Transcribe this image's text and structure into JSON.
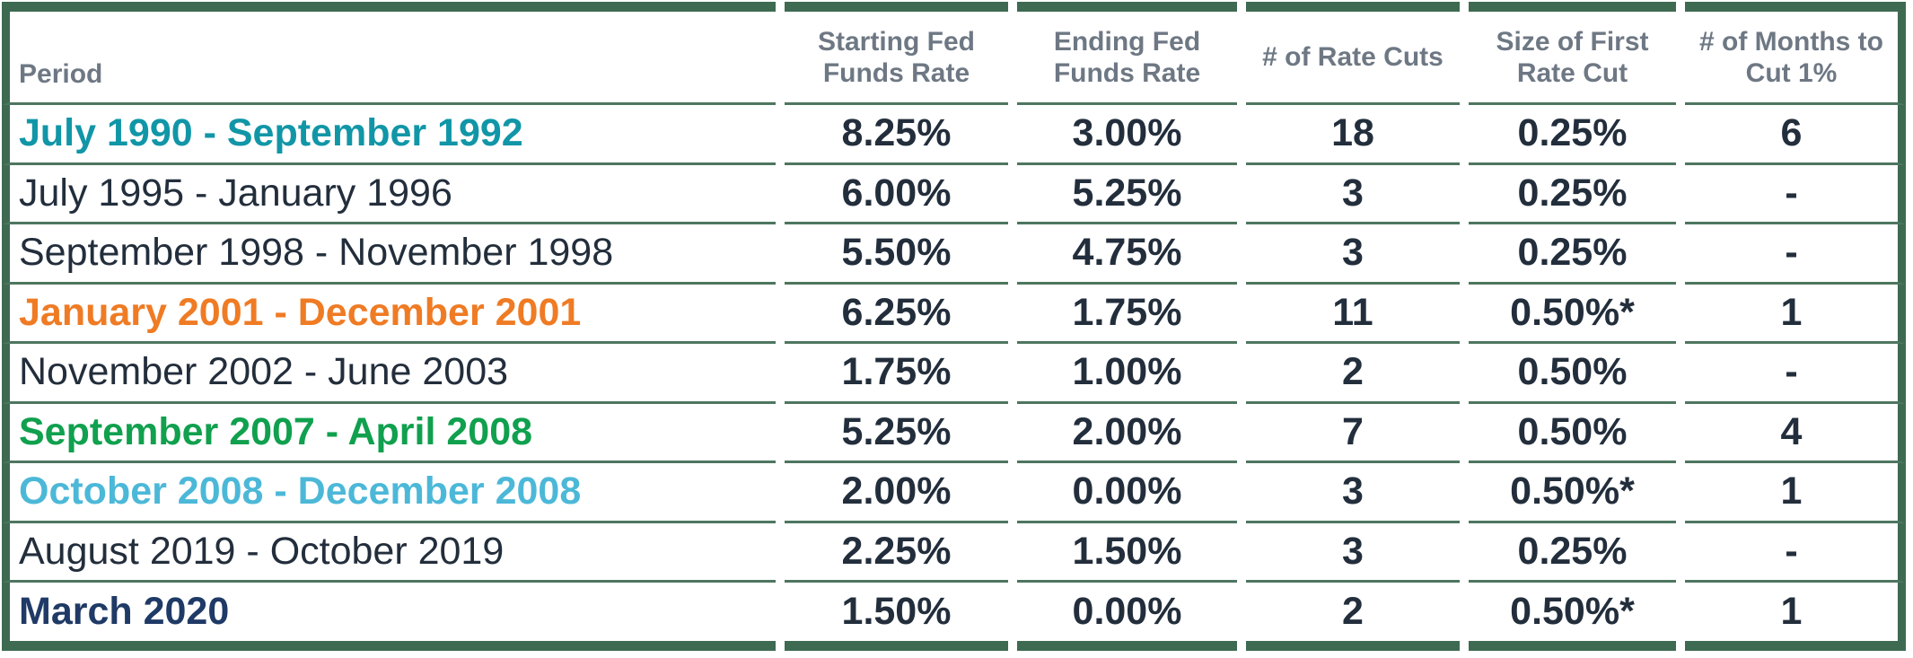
{
  "colors": {
    "frame_green": "#3E6A52",
    "row_line_green": "#4E7660",
    "header_text": "#6E7884",
    "body_text": "#232E3C"
  },
  "header": {
    "cols": [
      {
        "lines": [
          "Period"
        ]
      },
      {
        "lines": [
          "Starting Fed",
          "Funds Rate"
        ]
      },
      {
        "lines": [
          "Ending Fed",
          "Funds Rate"
        ]
      },
      {
        "lines": [
          "# of Rate Cuts"
        ]
      },
      {
        "lines": [
          "Size of First",
          "Rate Cut"
        ]
      },
      {
        "lines": [
          "# of Months to",
          "Cut 1%"
        ]
      }
    ]
  },
  "chart_data": {
    "type": "table",
    "columns": [
      "Period",
      "Starting Fed Funds Rate",
      "Ending Fed Funds Rate",
      "# of Rate Cuts",
      "Size of First Rate Cut",
      "# of Months to Cut 1%"
    ],
    "rows": [
      {
        "period": "July 1990 - September 1992",
        "starting_rate": "8.25%",
        "ending_rate": "3.00%",
        "rate_cuts": "18",
        "first_cut_size": "0.25%",
        "months_to_cut_1pct": "6",
        "color": "#1196A7",
        "bold": true
      },
      {
        "period": "July 1995 - January 1996",
        "starting_rate": "6.00%",
        "ending_rate": "5.25%",
        "rate_cuts": "3",
        "first_cut_size": "0.25%",
        "months_to_cut_1pct": "-",
        "color": "#232E3C",
        "bold": false
      },
      {
        "period": "September 1998 - November 1998",
        "starting_rate": "5.50%",
        "ending_rate": "4.75%",
        "rate_cuts": "3",
        "first_cut_size": "0.25%",
        "months_to_cut_1pct": "-",
        "color": "#232E3C",
        "bold": false
      },
      {
        "period": "January 2001 - December 2001",
        "starting_rate": "6.25%",
        "ending_rate": "1.75%",
        "rate_cuts": "11",
        "first_cut_size": "0.50%*",
        "months_to_cut_1pct": "1",
        "color": "#EF7B24",
        "bold": true
      },
      {
        "period": "November 2002 - June 2003",
        "starting_rate": "1.75%",
        "ending_rate": "1.00%",
        "rate_cuts": "2",
        "first_cut_size": "0.50%",
        "months_to_cut_1pct": "-",
        "color": "#232E3C",
        "bold": false
      },
      {
        "period": "September 2007 - April 2008",
        "starting_rate": "5.25%",
        "ending_rate": "2.00%",
        "rate_cuts": "7",
        "first_cut_size": "0.50%",
        "months_to_cut_1pct": "4",
        "color": "#10A04E",
        "bold": true
      },
      {
        "period": "October 2008 - December 2008",
        "starting_rate": "2.00%",
        "ending_rate": "0.00%",
        "rate_cuts": "3",
        "first_cut_size": "0.50%*",
        "months_to_cut_1pct": "1",
        "color": "#4CB8D8",
        "bold": true
      },
      {
        "period": "August 2019 - October 2019",
        "starting_rate": "2.25%",
        "ending_rate": "1.50%",
        "rate_cuts": "3",
        "first_cut_size": "0.25%",
        "months_to_cut_1pct": "-",
        "color": "#232E3C",
        "bold": false
      },
      {
        "period": "March 2020",
        "starting_rate": "1.50%",
        "ending_rate": "0.00%",
        "rate_cuts": "2",
        "first_cut_size": "0.50%*",
        "months_to_cut_1pct": "1",
        "color": "#1F3A66",
        "bold": true
      }
    ]
  }
}
